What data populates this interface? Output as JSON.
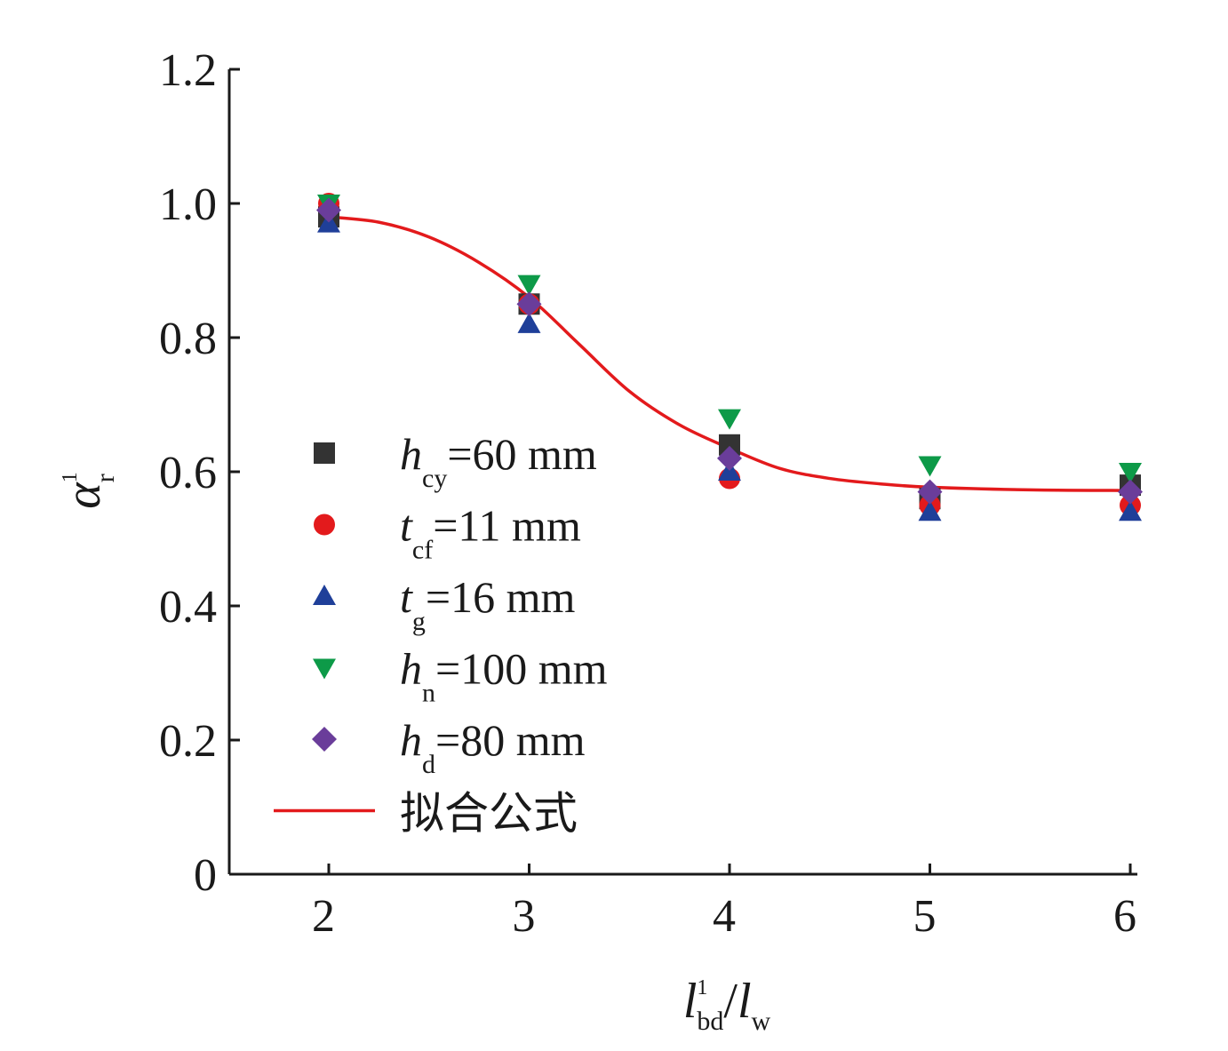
{
  "chart_data": {
    "type": "scatter",
    "xlabel": {
      "base": "l",
      "sup": "1",
      "sub": "bd",
      "sep": "/",
      "base2": "l",
      "sub2": "w"
    },
    "ylabel": {
      "base": "α",
      "sup": "1",
      "sub": "r"
    },
    "xlim": [
      1.5,
      6.05
    ],
    "ylim": [
      0,
      1.2
    ],
    "x_ticks": [
      "2",
      "3",
      "4",
      "5",
      "6"
    ],
    "y_ticks": [
      "0",
      "0.2",
      "0.4",
      "0.6",
      "0.8",
      "1.0",
      "1.2"
    ],
    "grid": false,
    "legend_position": "left",
    "series": [
      {
        "name": "hcy=60 mm",
        "legend": {
          "sym": "h",
          "sub": "cy",
          "rest": "=60 mm"
        },
        "marker": "square",
        "color": "#333333",
        "points": [
          [
            2,
            0.98
          ],
          [
            3,
            0.85
          ],
          [
            4,
            0.64
          ],
          [
            5,
            0.56
          ],
          [
            6,
            0.58
          ]
        ]
      },
      {
        "name": "tcf=11 mm",
        "legend": {
          "sym": "t",
          "sub": "cf",
          "rest": "=11 mm"
        },
        "marker": "circle",
        "color": "#e31a1c",
        "points": [
          [
            2,
            1.0
          ],
          [
            3,
            0.85
          ],
          [
            4,
            0.59
          ],
          [
            5,
            0.55
          ],
          [
            6,
            0.55
          ]
        ]
      },
      {
        "name": "tg=16 mm",
        "legend": {
          "sym": "t",
          "sub": "g",
          "rest": "=16 mm"
        },
        "marker": "triangle-up",
        "color": "#1f3f99",
        "points": [
          [
            2,
            0.97
          ],
          [
            3,
            0.82
          ],
          [
            4,
            0.6
          ],
          [
            5,
            0.54
          ],
          [
            6,
            0.54
          ]
        ]
      },
      {
        "name": "hn=100 mm",
        "legend": {
          "sym": "h",
          "sub": "n",
          "rest": "=100 mm"
        },
        "marker": "triangle-down",
        "color": "#0d9a48",
        "points": [
          [
            2,
            1.0
          ],
          [
            3,
            0.88
          ],
          [
            4,
            0.68
          ],
          [
            5,
            0.61
          ],
          [
            6,
            0.6
          ]
        ]
      },
      {
        "name": "hd=80 mm",
        "legend": {
          "sym": "h",
          "sub": "d",
          "rest": "=80 mm"
        },
        "marker": "diamond",
        "color": "#6a3d9a",
        "points": [
          [
            2,
            0.99
          ],
          [
            3,
            0.85
          ],
          [
            4,
            0.62
          ],
          [
            5,
            0.57
          ],
          [
            6,
            0.57
          ]
        ]
      }
    ],
    "fit": {
      "name": "拟合公式",
      "color": "#e31a1c",
      "points": [
        [
          2.0,
          0.98
        ],
        [
          2.25,
          0.972
        ],
        [
          2.5,
          0.95
        ],
        [
          2.75,
          0.912
        ],
        [
          3.0,
          0.86
        ],
        [
          3.25,
          0.79
        ],
        [
          3.5,
          0.72
        ],
        [
          3.75,
          0.67
        ],
        [
          4.0,
          0.635
        ],
        [
          4.25,
          0.605
        ],
        [
          4.5,
          0.59
        ],
        [
          4.75,
          0.582
        ],
        [
          5.0,
          0.577
        ],
        [
          5.5,
          0.573
        ],
        [
          6.0,
          0.572
        ]
      ]
    }
  }
}
